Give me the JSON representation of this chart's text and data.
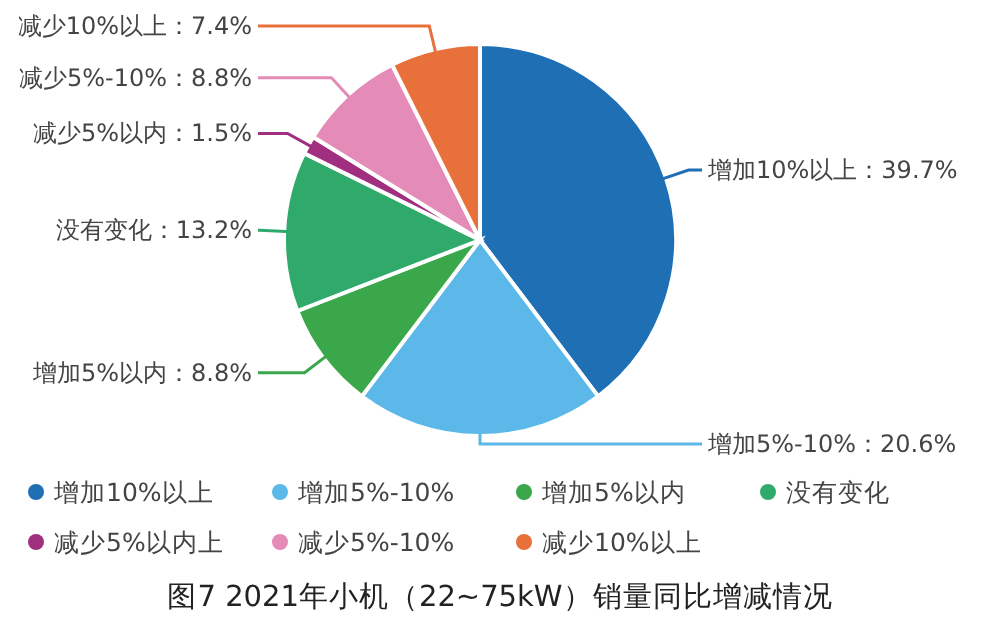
{
  "chart_data": {
    "type": "pie",
    "title": "图7 2021年小机（22~75kW）销量同比增减情况",
    "categories": [
      "增加10%以上",
      "增加5%-10%",
      "增加5%以内",
      "没有变化",
      "减少5%以内上",
      "减少5%-10%",
      "减少10%以上"
    ],
    "values": [
      39.7,
      20.6,
      8.8,
      13.2,
      1.5,
      8.8,
      7.4
    ],
    "colors": [
      "#1f6fb5",
      "#5bb8e8",
      "#3aa84a",
      "#2faa6a",
      "#a0307f",
      "#e58bb8",
      "#e8703a"
    ],
    "value_labels": [
      "增加10%以上：39.7%",
      "增加5%-10%：20.6%",
      "增加5%以内：8.8%",
      "没有变化：13.2%",
      "减少5%以内：1.5%",
      "减少5%-10%：8.8%",
      "减少10%以上：7.4%"
    ],
    "legend": "bottom"
  }
}
